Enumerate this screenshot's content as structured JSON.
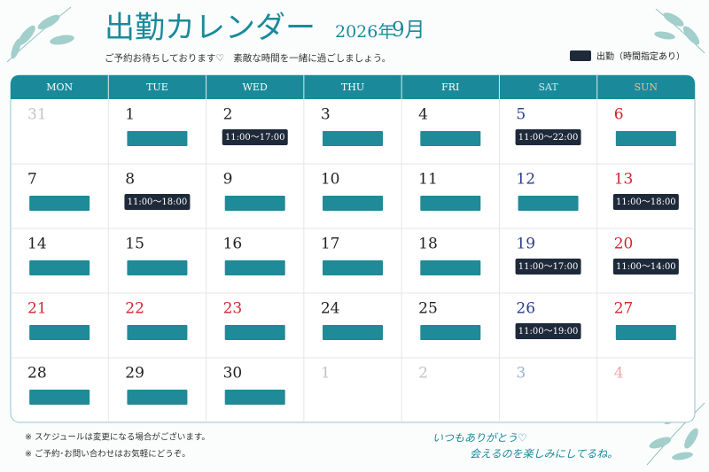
{
  "header": {
    "title": "出勤カレンダー",
    "year": "2026年",
    "month": "9月",
    "subtitle": "ご予約お待ちしております♡　素敵な時間を一緒に過ごしましょう。",
    "legend": "出勤（時間指定あり）"
  },
  "calendar": {
    "weekdays": [
      {
        "label": "MON",
        "color": "#ffffff"
      },
      {
        "label": "TUE",
        "color": "#ffffff"
      },
      {
        "label": "WED",
        "color": "#ffffff"
      },
      {
        "label": "THU",
        "color": "#ffffff"
      },
      {
        "label": "FRI",
        "color": "#ffffff"
      },
      {
        "label": "SAT",
        "color": "#cfe9f3"
      },
      {
        "label": "SUN",
        "color": "#f6b98a"
      }
    ],
    "weeks": [
      [
        {
          "day": "31",
          "color": "#c4c4c4"
        },
        {
          "day": "1",
          "color": "#222222",
          "work": true
        },
        {
          "day": "2",
          "color": "#222222",
          "time": "11:00～17:00"
        },
        {
          "day": "3",
          "color": "#222222",
          "work": true
        },
        {
          "day": "4",
          "color": "#222222",
          "work": true
        },
        {
          "day": "5",
          "color": "#2b3f8c",
          "time": "11:00～22:00"
        },
        {
          "day": "6",
          "color": "#d0262f",
          "work": true
        }
      ],
      [
        {
          "day": "7",
          "color": "#222222",
          "work": true
        },
        {
          "day": "8",
          "color": "#222222",
          "time": "11:00～18:00"
        },
        {
          "day": "9",
          "color": "#222222",
          "work": true
        },
        {
          "day": "10",
          "color": "#222222",
          "work": true
        },
        {
          "day": "11",
          "color": "#222222",
          "work": true
        },
        {
          "day": "12",
          "color": "#2b3f8c",
          "work": true
        },
        {
          "day": "13",
          "color": "#d0262f",
          "time": "11:00～18:00"
        }
      ],
      [
        {
          "day": "14",
          "color": "#222222",
          "work": true
        },
        {
          "day": "15",
          "color": "#222222",
          "work": true
        },
        {
          "day": "16",
          "color": "#222222",
          "work": true
        },
        {
          "day": "17",
          "color": "#222222",
          "work": true
        },
        {
          "day": "18",
          "color": "#222222",
          "work": true
        },
        {
          "day": "19",
          "color": "#2b3f8c",
          "time": "11:00～17:00"
        },
        {
          "day": "20",
          "color": "#d0262f",
          "time": "11:00～14:00"
        }
      ],
      [
        {
          "day": "21",
          "color": "#d0262f",
          "work": true
        },
        {
          "day": "22",
          "color": "#d0262f",
          "work": true
        },
        {
          "day": "23",
          "color": "#d0262f",
          "work": true
        },
        {
          "day": "24",
          "color": "#222222",
          "work": true
        },
        {
          "day": "25",
          "color": "#222222",
          "work": true
        },
        {
          "day": "26",
          "color": "#2b3f8c",
          "time": "11:00～19:00"
        },
        {
          "day": "27",
          "color": "#d0262f",
          "work": true
        }
      ],
      [
        {
          "day": "28",
          "color": "#222222",
          "work": true
        },
        {
          "day": "29",
          "color": "#222222",
          "work": true
        },
        {
          "day": "30",
          "color": "#222222",
          "work": true
        },
        {
          "day": "1",
          "color": "#c4c4c4"
        },
        {
          "day": "2",
          "color": "#c4c4c4"
        },
        {
          "day": "3",
          "color": "#9fb0d8"
        },
        {
          "day": "4",
          "color": "#eeaaaa"
        }
      ]
    ]
  },
  "footer": {
    "notes": [
      "※ スケジュールは変更になる場合がございます。",
      "※ ご予約･お問い合わせはお気軽にどうぞ。"
    ],
    "message": [
      "いつもありがとう♡",
      "会えるのを楽しみにしてるね。"
    ]
  }
}
